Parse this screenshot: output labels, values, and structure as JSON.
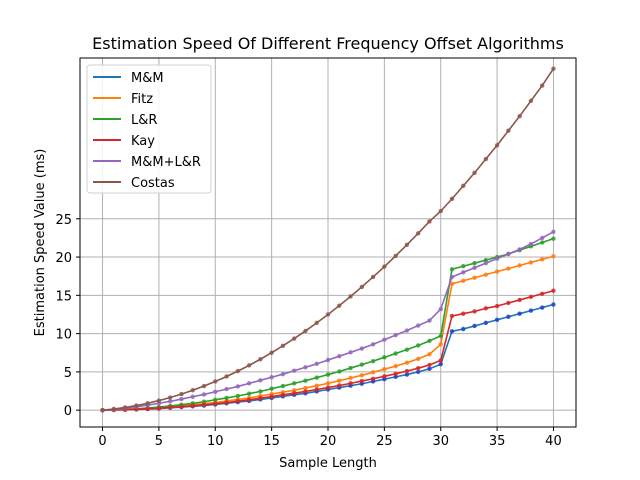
{
  "chart_data": {
    "type": "line",
    "title": "Estimation Speed Of Different Frequency Offset Algorithms",
    "xlabel": "Sample Length",
    "ylabel": "Estimation Speed Value (ms)",
    "xlim": [
      -2,
      42
    ],
    "ylim": [
      -2.2,
      46
    ],
    "xticks": [
      0,
      5,
      10,
      15,
      20,
      25,
      30,
      35,
      40
    ],
    "yticks": [
      0,
      5,
      10,
      15,
      20,
      25
    ],
    "grid": true,
    "legend_position": "top-left",
    "marker": "dot",
    "x": [
      0,
      1,
      2,
      3,
      4,
      5,
      6,
      7,
      8,
      9,
      10,
      11,
      12,
      13,
      14,
      15,
      16,
      17,
      18,
      19,
      20,
      21,
      22,
      23,
      24,
      25,
      26,
      27,
      28,
      29,
      30,
      31,
      32,
      33,
      34,
      35,
      36,
      37,
      38,
      39,
      40
    ],
    "series": [
      {
        "name": "M&M",
        "color": "#1f77b4",
        "marker_color": "#1f3fcf",
        "values": [
          0,
          0.02,
          0.05,
          0.1,
          0.15,
          0.2,
          0.3,
          0.4,
          0.5,
          0.6,
          0.75,
          0.9,
          1.05,
          1.2,
          1.4,
          1.6,
          1.8,
          2.0,
          2.2,
          2.45,
          2.7,
          2.95,
          3.2,
          3.45,
          3.75,
          4.05,
          4.35,
          4.65,
          5.0,
          5.4,
          6.0,
          10.3,
          10.6,
          11.0,
          11.4,
          11.8,
          12.2,
          12.6,
          13.0,
          13.4,
          13.8
        ]
      },
      {
        "name": "Fitz",
        "color": "#ff7f0e",
        "values": [
          0,
          0.03,
          0.08,
          0.15,
          0.22,
          0.3,
          0.42,
          0.55,
          0.7,
          0.85,
          1.0,
          1.2,
          1.4,
          1.6,
          1.85,
          2.1,
          2.35,
          2.6,
          2.9,
          3.2,
          3.5,
          3.85,
          4.2,
          4.55,
          4.95,
          5.35,
          5.75,
          6.2,
          6.7,
          7.3,
          8.6,
          16.5,
          16.9,
          17.3,
          17.7,
          18.1,
          18.5,
          18.9,
          19.3,
          19.7,
          20.1
        ]
      },
      {
        "name": "L&R",
        "color": "#2ca02c",
        "values": [
          0,
          0.04,
          0.1,
          0.18,
          0.28,
          0.4,
          0.55,
          0.72,
          0.9,
          1.1,
          1.35,
          1.6,
          1.85,
          2.15,
          2.45,
          2.8,
          3.15,
          3.5,
          3.85,
          4.25,
          4.65,
          5.05,
          5.5,
          5.95,
          6.4,
          6.9,
          7.4,
          7.9,
          8.45,
          9.05,
          9.7,
          18.4,
          18.8,
          19.2,
          19.6,
          20.0,
          20.4,
          20.9,
          21.4,
          21.9,
          22.4
        ]
      },
      {
        "name": "Kay",
        "color": "#d62728",
        "values": [
          0,
          0.03,
          0.07,
          0.12,
          0.18,
          0.25,
          0.35,
          0.45,
          0.57,
          0.7,
          0.85,
          1.0,
          1.18,
          1.36,
          1.56,
          1.78,
          2.0,
          2.22,
          2.45,
          2.7,
          2.95,
          3.22,
          3.5,
          3.8,
          4.1,
          4.42,
          4.75,
          5.1,
          5.48,
          5.9,
          6.5,
          12.3,
          12.6,
          12.9,
          13.3,
          13.6,
          14.0,
          14.4,
          14.8,
          15.2,
          15.6
        ]
      },
      {
        "name": "M&M+L&R",
        "color": "#9467bd",
        "values": [
          0,
          0.1,
          0.25,
          0.45,
          0.65,
          0.9,
          1.15,
          1.45,
          1.75,
          2.05,
          2.4,
          2.75,
          3.1,
          3.5,
          3.9,
          4.3,
          4.7,
          5.15,
          5.6,
          6.05,
          6.55,
          7.05,
          7.55,
          8.05,
          8.6,
          9.2,
          9.8,
          10.4,
          11.05,
          11.7,
          13.2,
          17.4,
          18.0,
          18.6,
          19.2,
          19.8,
          20.4,
          21.0,
          21.7,
          22.5,
          23.3
        ]
      },
      {
        "name": "Costas",
        "color": "#8c564b",
        "values": [
          0,
          0.15,
          0.35,
          0.6,
          0.9,
          1.25,
          1.65,
          2.1,
          2.6,
          3.15,
          3.75,
          4.4,
          5.1,
          5.85,
          6.65,
          7.5,
          8.4,
          9.35,
          10.35,
          11.4,
          12.5,
          13.65,
          14.85,
          16.1,
          17.4,
          18.75,
          20.15,
          21.6,
          23.1,
          24.65,
          26.0,
          27.6,
          29.3,
          31.0,
          32.8,
          34.6,
          36.5,
          38.4,
          40.4,
          42.4,
          44.6
        ]
      }
    ]
  }
}
